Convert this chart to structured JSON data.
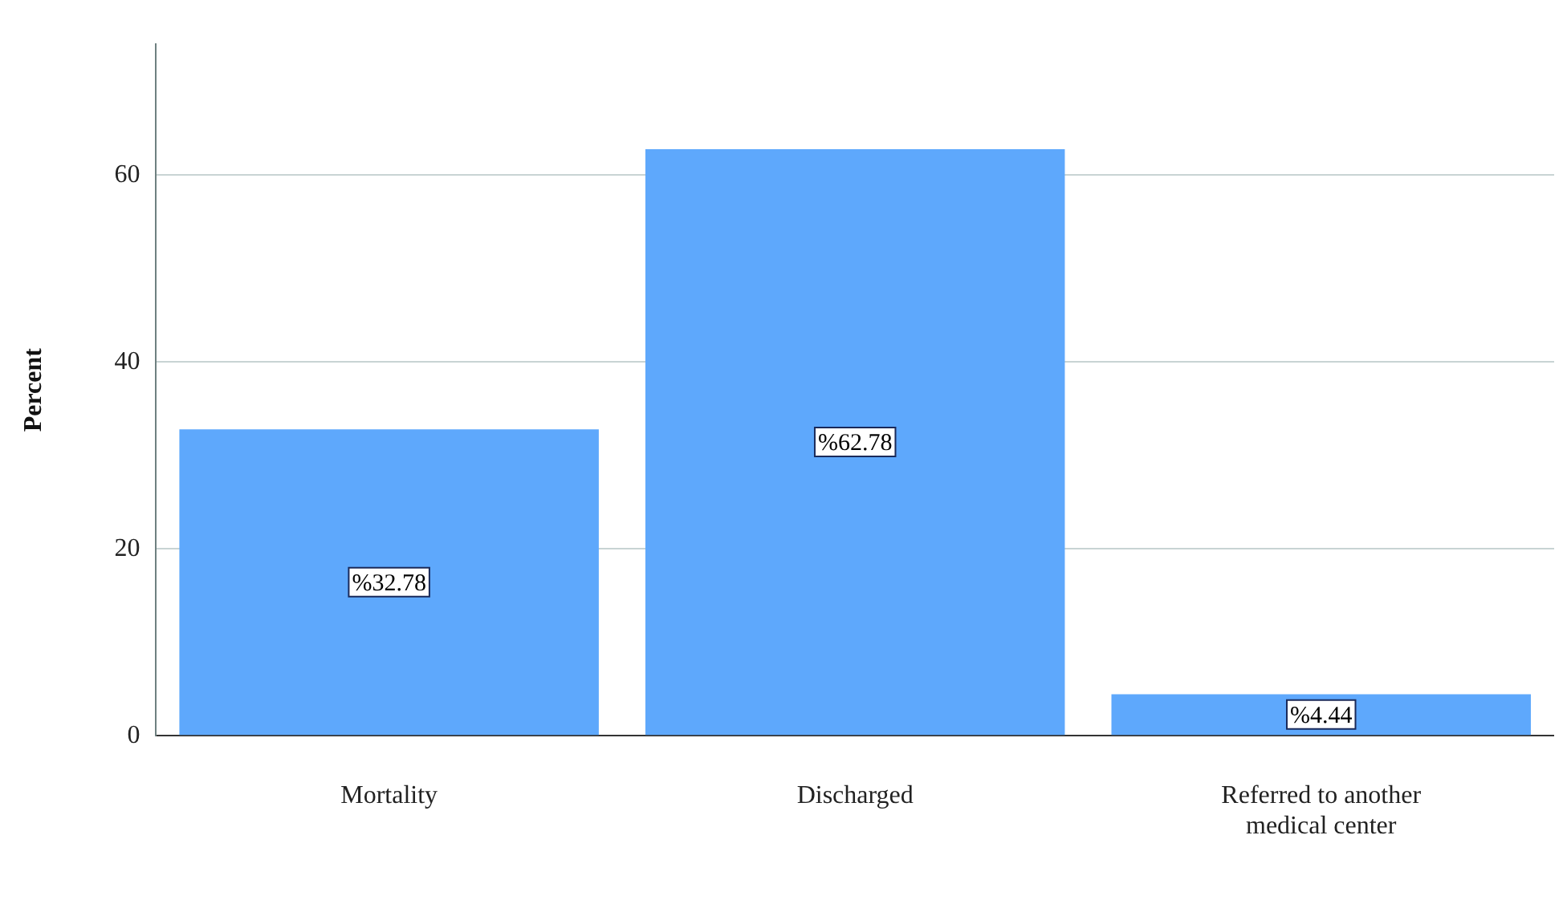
{
  "chart_data": {
    "type": "bar",
    "ylabel": "Percent",
    "categories": [
      "Mortality",
      "Discharged",
      "Referred to another medical center"
    ],
    "values": [
      32.78,
      62.78,
      4.44
    ],
    "color": "#5ea8fc",
    "value_labels": [
      "%32.78",
      "%62.78",
      "%4.44"
    ],
    "ylim": [
      0,
      74
    ],
    "yticks": [
      0,
      20,
      40,
      60
    ],
    "grid": "y",
    "legend": false
  }
}
